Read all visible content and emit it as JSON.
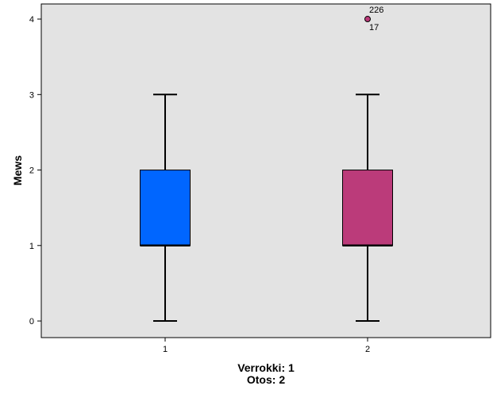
{
  "chart_data": {
    "type": "boxplot",
    "ylabel": "Mews",
    "xlabel_lines": [
      "Verrokki: 1",
      "Otos: 2"
    ],
    "categories": [
      "1",
      "2"
    ],
    "ylim": [
      -0.22,
      4.2
    ],
    "yticks": [
      0,
      1,
      2,
      3,
      4
    ],
    "grid": false,
    "legend": "none",
    "plot_background": "#e3e3e3",
    "boxes": [
      {
        "category": "1",
        "min": 0,
        "q1": 1,
        "median": 1,
        "q3": 2,
        "max": 3,
        "color": "#0066ff",
        "outliers": []
      },
      {
        "category": "2",
        "min": 0,
        "q1": 1,
        "median": 1,
        "q3": 2,
        "max": 3,
        "color": "#bb3b7a",
        "outliers": [
          {
            "value": 4,
            "labels": [
              "226",
              "17"
            ]
          }
        ]
      }
    ]
  }
}
